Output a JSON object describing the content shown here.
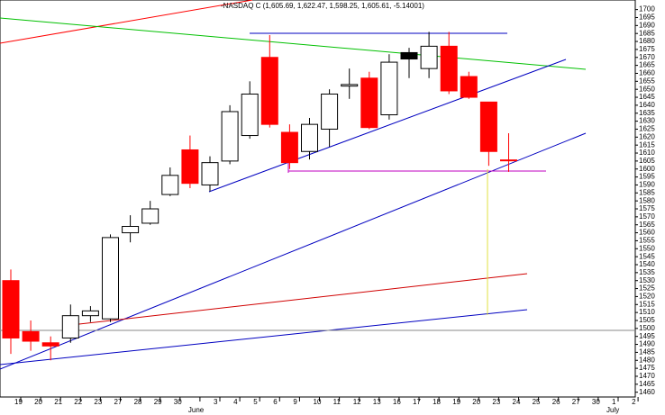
{
  "chart_data": {
    "type": "candlestick",
    "title": "-NASDAQ C (1,605.69, 1,622.47, 1,598.25, 1,605.61, -5.14001)",
    "categories": [
      "19",
      "20",
      "21",
      "22",
      "23",
      "27",
      "28",
      "29",
      "30",
      null,
      "3",
      "4",
      "5",
      "6",
      "9",
      "10",
      "11",
      "12",
      "13",
      "16",
      "17",
      "18",
      "19",
      "20",
      "23",
      "24",
      "25",
      "26",
      "27",
      "30",
      "1",
      "2"
    ],
    "months": [
      "June",
      "July"
    ],
    "open": [
      1530,
      1498,
      1491,
      1494,
      1508,
      1506,
      1560,
      1566,
      1584,
      1612,
      1590,
      1605,
      1621,
      1670,
      1623,
      1611,
      1625,
      1652,
      1657,
      1634,
      1673,
      1663,
      1677,
      1658,
      1642,
      1605.69,
      null,
      null,
      null,
      null,
      null,
      null
    ],
    "high": [
      1537,
      1505,
      1495,
      1515,
      1514,
      1559,
      1571,
      1580,
      1601,
      1621,
      1608,
      1640,
      1655,
      1684,
      1628,
      1632,
      1650,
      1663,
      1661,
      1672,
      1676,
      1686,
      1686,
      1661,
      1642,
      1622.47,
      null,
      null,
      null,
      null,
      null,
      null
    ],
    "low": [
      1484,
      1486,
      1480,
      1491,
      1504,
      1504,
      1554,
      1565,
      1583,
      1588,
      1586,
      1603,
      1619,
      1626,
      1600,
      1606,
      1614,
      1644,
      1625,
      1631,
      1657,
      1657,
      1647,
      1644,
      1602,
      1598.25,
      null,
      null,
      null,
      null,
      null,
      null
    ],
    "close": [
      1494,
      1492,
      1489,
      1508,
      1511,
      1557,
      1564,
      1575,
      1596,
      1591,
      1604,
      1636,
      1647,
      1628,
      1604,
      1628,
      1647,
      1653,
      1626,
      1667,
      1669,
      1677,
      1649,
      1645,
      1611,
      1605.61,
      null,
      null,
      null,
      null,
      null,
      null
    ],
    "colors": [
      "#ff0000",
      "#ff0000",
      "#ff0000",
      "#ffffff",
      "#ffffff",
      "#ffffff",
      "#ffffff",
      "#ffffff",
      "#ffffff",
      "#ff0000",
      "#ffffff",
      "#ffffff",
      "#ffffff",
      "#ff0000",
      "#ff0000",
      "#ffffff",
      "#ffffff",
      "#ffffff",
      "#ff0000",
      "#ffffff",
      "#000000",
      "#ffffff",
      "#ff0000",
      "#ff0000",
      "#ff0000",
      "#ff0000",
      null,
      null,
      null,
      null,
      null,
      null
    ],
    "ylim": [
      1457,
      1706
    ],
    "yticks": [
      1460,
      1465,
      1470,
      1475,
      1480,
      1485,
      1490,
      1495,
      1500,
      1505,
      1510,
      1515,
      1520,
      1525,
      1530,
      1535,
      1540,
      1545,
      1550,
      1555,
      1560,
      1565,
      1570,
      1575,
      1580,
      1585,
      1590,
      1595,
      1600,
      1605,
      1610,
      1615,
      1620,
      1625,
      1630,
      1635,
      1640,
      1645,
      1650,
      1655,
      1660,
      1665,
      1670,
      1675,
      1680,
      1685,
      1690,
      1695,
      1700
    ]
  }
}
